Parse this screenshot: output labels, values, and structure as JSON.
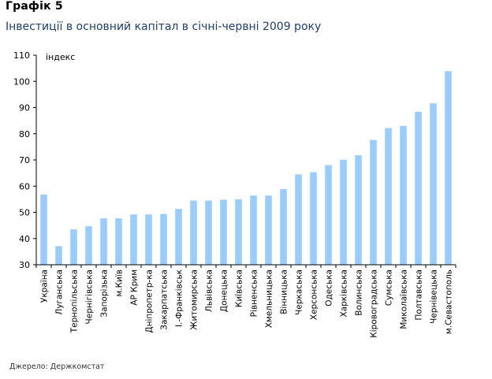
{
  "header": {
    "figure_label": "Графік 5",
    "title": "Інвестиції в основний капітал в січні-червні 2009 року"
  },
  "footer": {
    "source": "Джерело: Держкомстат"
  },
  "colors": {
    "bar": "#99ccff",
    "axis": "#000000",
    "subtitle": "#1f3e6e"
  },
  "chart_data": {
    "type": "bar",
    "ylabel": "індекс",
    "xlabel": "",
    "ylim": [
      30,
      110
    ],
    "yticks": [
      30,
      40,
      50,
      60,
      70,
      80,
      90,
      100,
      110
    ],
    "grid": false,
    "legend": "none",
    "categories": [
      "Україна",
      "Луганська",
      "Тернопільська",
      "Чернігівська",
      "Запорізька",
      "м.Київ",
      "АР Крим",
      "Дніпропетр-ка",
      "Закарпатська",
      "І.-Франківськ",
      "Житомирська",
      "Львівська",
      "Донецька",
      "Київська",
      "Рівненська",
      "Хмельницька",
      "Вінницька",
      "Черкаська",
      "Херсонська",
      "Одеська",
      "Харківська",
      "Волинська",
      "Кіровоградська",
      "Сумська",
      "Миколаївська",
      "Полтавська",
      "Чернівецька",
      "м.Севастополь"
    ],
    "values": [
      56.8,
      37.1,
      43.5,
      44.7,
      47.7,
      47.7,
      49.2,
      49.2,
      49.4,
      51.3,
      54.5,
      54.5,
      54.8,
      55.0,
      56.4,
      56.4,
      58.9,
      64.5,
      65.3,
      68.0,
      70.1,
      71.8,
      77.6,
      82.2,
      83.0,
      88.4,
      91.6,
      103.9
    ]
  }
}
